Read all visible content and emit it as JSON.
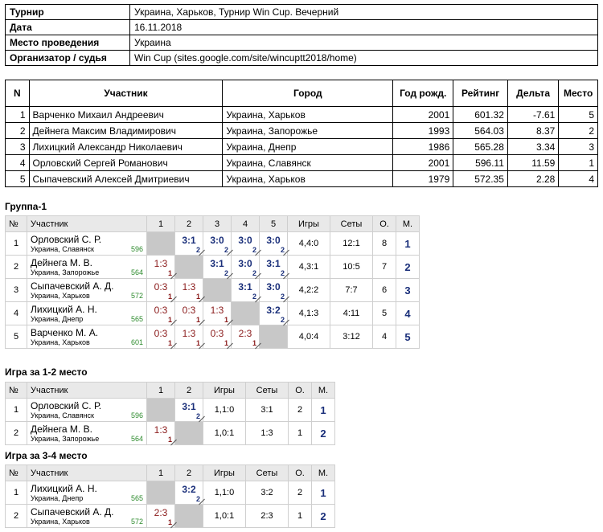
{
  "info": [
    {
      "key": "Турнир",
      "value": "Украина, Харьков, Турнир Win Cup. Вечерний"
    },
    {
      "key": "Дата",
      "value": "16.11.2018"
    },
    {
      "key": "Место проведения",
      "value": "Украина"
    },
    {
      "key": "Организатор / судья",
      "value": "Win Cup (sites.google.com/site/wincuptt2018/home)"
    }
  ],
  "participants": {
    "headers": [
      "N",
      "Участник",
      "Город",
      "Год рожд.",
      "Рейтинг",
      "Дельта",
      "Место"
    ],
    "rows": [
      [
        "1",
        "Варченко Михаил Андреевич",
        "Украина, Харьков",
        "2001",
        "601.32",
        "-7.61",
        "5"
      ],
      [
        "2",
        "Дейнега Максим Владимирович",
        "Украина, Запорожье",
        "1993",
        "564.03",
        "8.37",
        "2"
      ],
      [
        "3",
        "Лихицкий Александр Николаевич",
        "Украина, Днепр",
        "1986",
        "565.28",
        "3.34",
        "3"
      ],
      [
        "4",
        "Орловский Сергей Романович",
        "Украина, Славянск",
        "2001",
        "596.11",
        "11.59",
        "1"
      ],
      [
        "5",
        "Сыпачевский Алексей Дмитриевич",
        "Украина, Харьков",
        "1979",
        "572.35",
        "2.28",
        "4"
      ]
    ]
  },
  "group_headers": {
    "num": "№",
    "name": "Участник",
    "games": "Игры",
    "sets": "Сеты",
    "points": "О.",
    "place": "М."
  },
  "groups": [
    {
      "title": "Группа-1",
      "cols": [
        "1",
        "2",
        "3",
        "4",
        "5"
      ],
      "rows": [
        {
          "num": "1",
          "name": "Орловский С. Р.",
          "city": "Украина, Славянск",
          "rating": "596",
          "cells": [
            null,
            {
              "s": "3:1",
              "p": "2",
              "w": true
            },
            {
              "s": "3:0",
              "p": "2",
              "w": true
            },
            {
              "s": "3:0",
              "p": "2",
              "w": true
            },
            {
              "s": "3:0",
              "p": "2",
              "w": true
            }
          ],
          "games": "4,4:0",
          "sets": "12:1",
          "points": "8",
          "place": "1"
        },
        {
          "num": "2",
          "name": "Дейнега М. В.",
          "city": "Украина, Запорожье",
          "rating": "564",
          "cells": [
            {
              "s": "1:3",
              "p": "1",
              "w": false
            },
            null,
            {
              "s": "3:1",
              "p": "2",
              "w": true
            },
            {
              "s": "3:0",
              "p": "2",
              "w": true
            },
            {
              "s": "3:1",
              "p": "2",
              "w": true
            }
          ],
          "games": "4,3:1",
          "sets": "10:5",
          "points": "7",
          "place": "2"
        },
        {
          "num": "3",
          "name": "Сыпачевский А. Д.",
          "city": "Украина, Харьков",
          "rating": "572",
          "cells": [
            {
              "s": "0:3",
              "p": "1",
              "w": false
            },
            {
              "s": "1:3",
              "p": "1",
              "w": false
            },
            null,
            {
              "s": "3:1",
              "p": "2",
              "w": true
            },
            {
              "s": "3:0",
              "p": "2",
              "w": true
            }
          ],
          "games": "4,2:2",
          "sets": "7:7",
          "points": "6",
          "place": "3"
        },
        {
          "num": "4",
          "name": "Лихицкий А. Н.",
          "city": "Украина, Днепр",
          "rating": "565",
          "cells": [
            {
              "s": "0:3",
              "p": "1",
              "w": false
            },
            {
              "s": "0:3",
              "p": "1",
              "w": false
            },
            {
              "s": "1:3",
              "p": "1",
              "w": false
            },
            null,
            {
              "s": "3:2",
              "p": "2",
              "w": true
            }
          ],
          "games": "4,1:3",
          "sets": "4:11",
          "points": "5",
          "place": "4"
        },
        {
          "num": "5",
          "name": "Варченко М. А.",
          "city": "Украина, Харьков",
          "rating": "601",
          "cells": [
            {
              "s": "0:3",
              "p": "1",
              "w": false
            },
            {
              "s": "1:3",
              "p": "1",
              "w": false
            },
            {
              "s": "0:3",
              "p": "1",
              "w": false
            },
            {
              "s": "2:3",
              "p": "1",
              "w": false
            },
            null
          ],
          "games": "4,0:4",
          "sets": "3:12",
          "points": "4",
          "place": "5"
        }
      ]
    },
    {
      "title": "Игра за 1-2 место",
      "cols": [
        "1",
        "2"
      ],
      "rows": [
        {
          "num": "1",
          "name": "Орловский С. Р.",
          "city": "Украина, Славянск",
          "rating": "596",
          "cells": [
            null,
            {
              "s": "3:1",
              "p": "2",
              "w": true
            }
          ],
          "games": "1,1:0",
          "sets": "3:1",
          "points": "2",
          "place": "1"
        },
        {
          "num": "2",
          "name": "Дейнега М. В.",
          "city": "Украина, Запорожье",
          "rating": "564",
          "cells": [
            {
              "s": "1:3",
              "p": "1",
              "w": false
            },
            null
          ],
          "games": "1,0:1",
          "sets": "1:3",
          "points": "1",
          "place": "2"
        }
      ]
    },
    {
      "title": "Игра за 3-4 место",
      "cols": [
        "1",
        "2"
      ],
      "rows": [
        {
          "num": "1",
          "name": "Лихицкий А. Н.",
          "city": "Украина, Днепр",
          "rating": "565",
          "cells": [
            null,
            {
              "s": "3:2",
              "p": "2",
              "w": true
            }
          ],
          "games": "1,1:0",
          "sets": "3:2",
          "points": "2",
          "place": "1"
        },
        {
          "num": "2",
          "name": "Сыпачевский А. Д.",
          "city": "Украина, Харьков",
          "rating": "572",
          "cells": [
            {
              "s": "2:3",
              "p": "1",
              "w": false
            },
            null
          ],
          "games": "1,0:1",
          "sets": "2:3",
          "points": "1",
          "place": "2"
        }
      ]
    }
  ]
}
